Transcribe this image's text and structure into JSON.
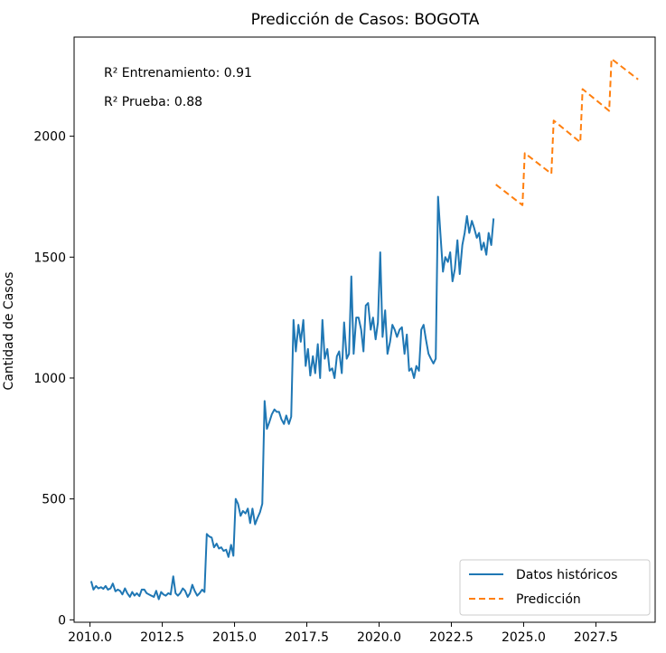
{
  "chart_data": {
    "type": "line",
    "title": "Predicción de Casos: BOGOTA",
    "xlabel": "",
    "ylabel": "Cantidad de Casos",
    "xlim": [
      2009.45,
      2029.55
    ],
    "ylim": [
      -10,
      2410
    ],
    "x_ticks": [
      2010.0,
      2012.5,
      2015.0,
      2017.5,
      2020.0,
      2022.5,
      2025.0,
      2027.5
    ],
    "x_tick_labels": [
      "2010.0",
      "2012.5",
      "2015.0",
      "2017.5",
      "2020.0",
      "2022.5",
      "2025.0",
      "2027.5"
    ],
    "y_ticks": [
      0,
      500,
      1000,
      1500,
      2000
    ],
    "y_tick_labels": [
      "0",
      "500",
      "1000",
      "1500",
      "2000"
    ],
    "grid": false,
    "legend_position": "lower-right",
    "annotations": [
      "R² Entrenamiento: 0.91",
      "R² Prueba: 0.88"
    ],
    "series": [
      {
        "name": "Datos históricos",
        "color": "#1f77b4",
        "style": "solid",
        "x": [
          2010.04,
          2010.12,
          2010.21,
          2010.29,
          2010.38,
          2010.46,
          2010.54,
          2010.62,
          2010.71,
          2010.79,
          2010.88,
          2010.96,
          2011.04,
          2011.12,
          2011.21,
          2011.29,
          2011.38,
          2011.46,
          2011.54,
          2011.62,
          2011.71,
          2011.79,
          2011.88,
          2011.96,
          2012.04,
          2012.12,
          2012.21,
          2012.29,
          2012.38,
          2012.46,
          2012.54,
          2012.62,
          2012.71,
          2012.79,
          2012.88,
          2012.96,
          2013.04,
          2013.12,
          2013.21,
          2013.29,
          2013.38,
          2013.46,
          2013.54,
          2013.62,
          2013.71,
          2013.79,
          2013.88,
          2013.96,
          2014.04,
          2014.12,
          2014.21,
          2014.29,
          2014.38,
          2014.46,
          2014.54,
          2014.62,
          2014.71,
          2014.79,
          2014.88,
          2014.96,
          2015.04,
          2015.12,
          2015.21,
          2015.29,
          2015.38,
          2015.46,
          2015.54,
          2015.62,
          2015.71,
          2015.79,
          2015.88,
          2015.96,
          2016.04,
          2016.12,
          2016.21,
          2016.29,
          2016.38,
          2016.46,
          2016.54,
          2016.62,
          2016.71,
          2016.79,
          2016.88,
          2016.96,
          2017.04,
          2017.12,
          2017.21,
          2017.29,
          2017.38,
          2017.46,
          2017.54,
          2017.62,
          2017.71,
          2017.79,
          2017.88,
          2017.96,
          2018.04,
          2018.12,
          2018.21,
          2018.29,
          2018.38,
          2018.46,
          2018.54,
          2018.62,
          2018.71,
          2018.79,
          2018.88,
          2018.96,
          2019.04,
          2019.12,
          2019.21,
          2019.29,
          2019.38,
          2019.46,
          2019.54,
          2019.62,
          2019.71,
          2019.79,
          2019.88,
          2019.96,
          2020.04,
          2020.12,
          2020.21,
          2020.29,
          2020.38,
          2020.46,
          2020.54,
          2020.62,
          2020.71,
          2020.79,
          2020.88,
          2020.96,
          2021.04,
          2021.12,
          2021.21,
          2021.29,
          2021.38,
          2021.46,
          2021.54,
          2021.62,
          2021.71,
          2021.79,
          2021.88,
          2021.96,
          2022.04,
          2022.12,
          2022.21,
          2022.29,
          2022.38,
          2022.46,
          2022.54,
          2022.62,
          2022.71,
          2022.79,
          2022.88,
          2022.96,
          2023.04,
          2023.12,
          2023.21,
          2023.29,
          2023.38,
          2023.46,
          2023.54,
          2023.62,
          2023.71,
          2023.79,
          2023.88,
          2023.96
        ],
        "y": [
          160,
          125,
          140,
          130,
          135,
          128,
          140,
          125,
          130,
          150,
          118,
          125,
          120,
          105,
          130,
          110,
          95,
          115,
          100,
          110,
          98,
          125,
          125,
          110,
          105,
          100,
          95,
          120,
          85,
          115,
          105,
          100,
          110,
          105,
          180,
          110,
          100,
          110,
          130,
          120,
          95,
          110,
          145,
          120,
          100,
          110,
          125,
          115,
          355,
          345,
          340,
          300,
          315,
          295,
          300,
          285,
          290,
          260,
          310,
          265,
          500,
          480,
          430,
          450,
          440,
          460,
          400,
          460,
          395,
          420,
          445,
          480,
          905,
          790,
          820,
          850,
          870,
          860,
          860,
          830,
          810,
          845,
          810,
          840,
          1240,
          1110,
          1220,
          1150,
          1240,
          1050,
          1120,
          1010,
          1090,
          1020,
          1140,
          1000,
          1240,
          1080,
          1120,
          1030,
          1040,
          1000,
          1090,
          1110,
          1020,
          1230,
          1080,
          1100,
          1420,
          1100,
          1250,
          1250,
          1200,
          1110,
          1300,
          1310,
          1200,
          1250,
          1160,
          1230,
          1520,
          1170,
          1280,
          1100,
          1150,
          1220,
          1200,
          1170,
          1200,
          1210,
          1100,
          1180,
          1030,
          1040,
          1000,
          1050,
          1030,
          1200,
          1220,
          1160,
          1100,
          1080,
          1060,
          1080,
          1750,
          1600,
          1440,
          1500,
          1480,
          1520,
          1400,
          1450,
          1570,
          1430,
          1550,
          1600,
          1670,
          1600,
          1650,
          1620,
          1580,
          1600,
          1530,
          1560,
          1510,
          1600,
          1550,
          1660
        ]
      },
      {
        "name": "Predicción",
        "color": "#ff7f0e",
        "style": "dashed",
        "x": [
          2024.04,
          2024.96,
          2025.04,
          2025.96,
          2026.04,
          2026.96,
          2027.04,
          2027.96,
          2028.04,
          2028.96
        ],
        "y": [
          1800,
          1715,
          1930,
          1845,
          2065,
          1975,
          2195,
          2105,
          2320,
          2235
        ]
      }
    ]
  }
}
